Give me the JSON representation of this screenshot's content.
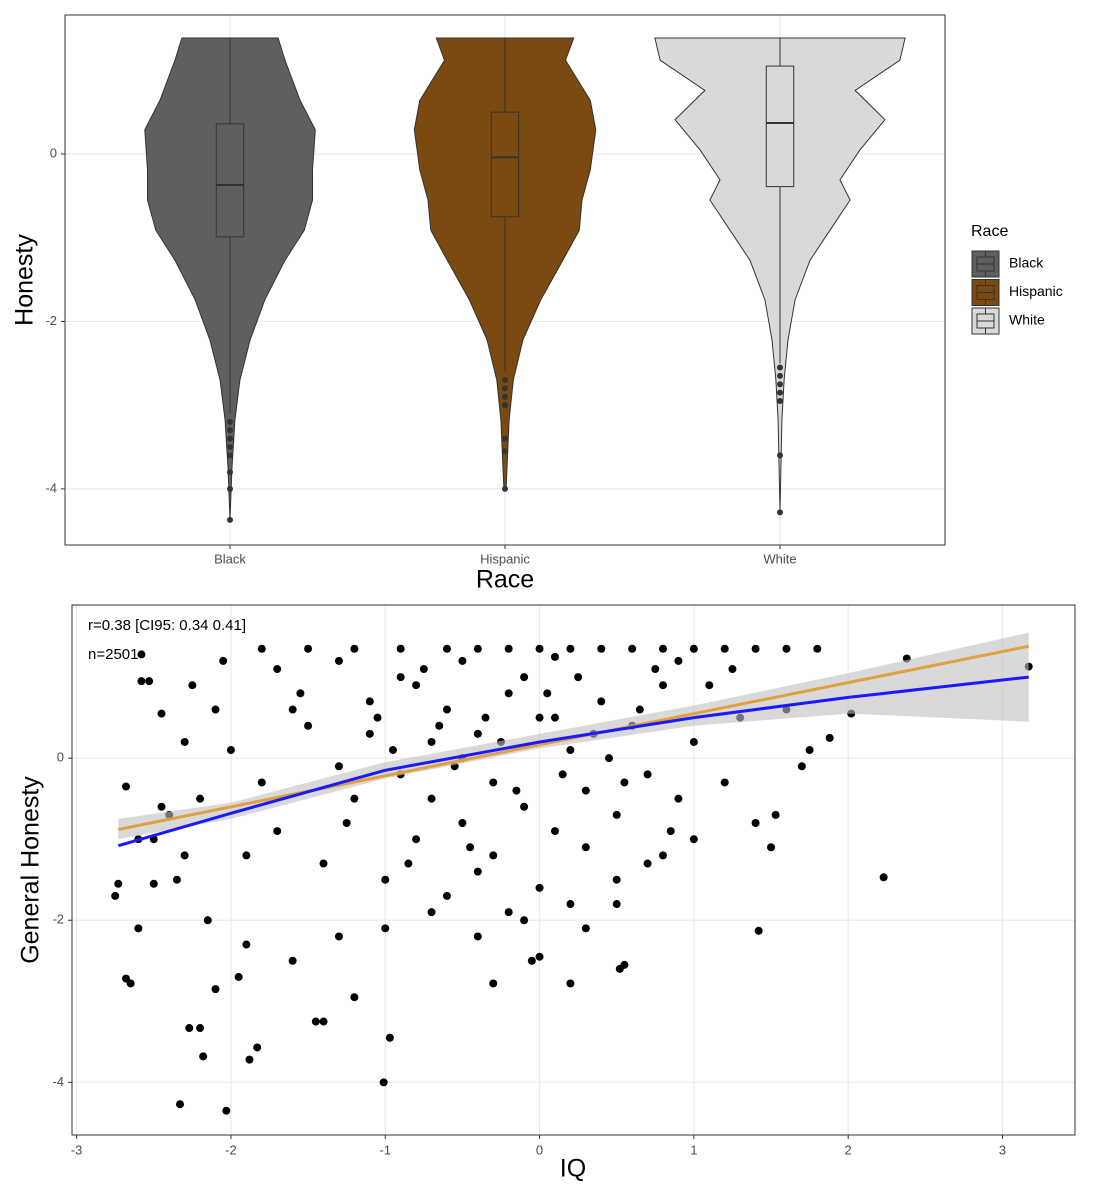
{
  "chart_data": [
    {
      "type": "violin",
      "x_label": "Race",
      "y_label": "Honesty",
      "categories": [
        "Black",
        "Hispanic",
        "White"
      ],
      "legend_title": "Race",
      "legend": "right",
      "grid": true,
      "ylim": [
        -4.67,
        1.66
      ],
      "yticks": [
        -4,
        -2,
        0
      ],
      "series": [
        {
          "name": "Black",
          "color": "#5f5f5f",
          "density_y": [
            1.385,
            1.12,
            0.64,
            0.29,
            -0.19,
            -0.55,
            -0.91,
            -1.27,
            -1.74,
            -2.22,
            -2.7,
            -3.18,
            -3.77,
            -4.37
          ],
          "density_w": [
            0.175,
            0.2,
            0.255,
            0.31,
            0.3,
            0.3,
            0.27,
            0.2,
            0.127,
            0.073,
            0.036,
            0.018,
            0.007,
            0
          ],
          "q1": -0.99,
          "median": -0.37,
          "q3": 0.36,
          "whisker_low": -3.1,
          "whisker_high": 1.385,
          "outliers": [
            -3.2,
            -3.3,
            -3.4,
            -3.5,
            -3.6,
            -3.8,
            -4.0,
            -4.37
          ]
        },
        {
          "name": "Hispanic",
          "color": "#7a4a10",
          "density_y": [
            1.385,
            1.12,
            0.64,
            0.29,
            -0.19,
            -0.55,
            -0.91,
            -1.27,
            -1.74,
            -2.22,
            -2.7,
            -3.18,
            -4.0
          ],
          "density_w": [
            0.25,
            0.22,
            0.31,
            0.33,
            0.31,
            0.28,
            0.27,
            0.21,
            0.13,
            0.065,
            0.03,
            0.015,
            0.004
          ],
          "q1": -0.75,
          "median": -0.04,
          "q3": 0.5,
          "whisker_low": -2.6,
          "whisker_high": 1.385,
          "outliers": [
            -2.7,
            -2.8,
            -2.9,
            -3.0,
            -3.4,
            -3.55,
            -4.0
          ]
        },
        {
          "name": "White",
          "color": "#d9d9d9",
          "density_y": [
            1.385,
            1.12,
            0.76,
            0.41,
            0.05,
            -0.31,
            -0.55,
            -0.91,
            -1.27,
            -1.74,
            -2.22,
            -2.7,
            -3.18,
            -4.27
          ],
          "density_w": [
            0.455,
            0.436,
            0.273,
            0.382,
            0.291,
            0.218,
            0.255,
            0.182,
            0.109,
            0.055,
            0.029,
            0.015,
            0.007,
            0
          ],
          "q1": -0.39,
          "median": 0.37,
          "q3": 1.05,
          "whisker_low": -2.5,
          "whisker_high": 1.385,
          "outliers": [
            -2.55,
            -2.65,
            -2.75,
            -2.85,
            -2.95,
            -3.6,
            -4.28
          ]
        }
      ]
    },
    {
      "type": "scatter",
      "x_label": "IQ",
      "y_label": "General Honesty",
      "annotations": [
        "r=0.38 [CI95: 0.34 0.41]",
        "n=2501"
      ],
      "grid": true,
      "xlim": [
        -3.03,
        3.47
      ],
      "xticks": [
        -3,
        -2,
        -1,
        0,
        1,
        2,
        3
      ],
      "ylim": [
        -4.65,
        1.89
      ],
      "yticks": [
        -4,
        -2,
        0
      ],
      "series": [
        {
          "color": "#000000",
          "x": [
            -2.33,
            -2.03,
            -1.01,
            -0.97,
            -2.18,
            -1.88,
            -1.83,
            -2.27,
            -2.2,
            -1.4,
            -1.45,
            -1.2,
            2.23,
            1.42,
            3.17,
            2.38,
            2.02,
            1.88,
            -2.65,
            -2.68,
            -2.6,
            -2.75,
            -2.73,
            -2.68,
            -2.58,
            -2.53,
            -2.45,
            -2.58,
            -2.1,
            -1.95,
            -0.3,
            0.2,
            0.55,
            0.52,
            -0.05,
            0.0,
            1.5,
            1.53,
            1.7,
            1.75,
            -1.8,
            -1.5,
            -1.2,
            -0.9,
            -0.6,
            -0.4,
            -0.2,
            0.0,
            0.2,
            0.4,
            0.6,
            0.8,
            1.0,
            1.2,
            1.4,
            1.6,
            1.8,
            -0.5,
            0.1,
            0.9,
            -0.8,
            -0.6,
            -0.4,
            -0.2,
            0.0,
            0.2,
            0.4,
            0.6,
            0.8,
            1.0,
            -0.9,
            -0.7,
            -0.5,
            -0.3,
            -0.1,
            0.1,
            0.3,
            0.5,
            0.7,
            0.9,
            -1.5,
            -1.3,
            -1.1,
            -0.9,
            -0.7,
            -0.5,
            -0.3,
            -0.1,
            0.1,
            0.3,
            -1.7,
            -1.6,
            -1.4,
            -1.2,
            -1.0,
            -0.8,
            -0.6,
            -0.4,
            -0.2,
            0.0,
            -2.2,
            -2.0,
            -1.9,
            -2.1,
            -2.4,
            -2.3,
            -1.8,
            -2.5,
            -2.35,
            -2.15,
            1.1,
            1.3,
            1.2,
            1.4,
            1.0,
            0.7,
            0.5,
            0.3,
            1.6,
            1.25,
            -1.3,
            -1.0,
            -0.7,
            -0.4,
            -0.1,
            0.2,
            0.5,
            0.8,
            -1.6,
            -1.9,
            -2.6,
            -2.5,
            -2.45,
            -2.3,
            -2.25,
            -2.05,
            -1.7,
            -1.55,
            -1.3,
            -1.1,
            -0.95,
            -0.75,
            -0.55,
            -0.35,
            -0.15,
            0.05,
            0.25,
            0.45,
            0.65,
            0.85,
            -1.25,
            -1.05,
            -0.85,
            -0.65,
            -0.45,
            -0.25,
            0.15,
            0.35,
            0.55,
            0.75
          ],
          "y": [
            -4.27,
            -4.35,
            -4.0,
            -3.45,
            -3.68,
            -3.72,
            -3.57,
            -3.33,
            -3.33,
            -3.25,
            -3.25,
            -2.95,
            -1.47,
            -2.13,
            1.13,
            1.23,
            0.55,
            0.25,
            -2.78,
            -2.72,
            -2.1,
            -1.7,
            -1.55,
            -0.35,
            0.95,
            0.95,
            0.55,
            1.28,
            -2.85,
            -2.7,
            -2.78,
            -2.78,
            -2.55,
            -2.6,
            -2.5,
            -2.45,
            -1.1,
            -0.7,
            -0.1,
            0.1,
            1.35,
            1.35,
            1.35,
            1.35,
            1.35,
            1.35,
            1.35,
            1.35,
            1.35,
            1.35,
            1.35,
            1.35,
            1.35,
            1.35,
            1.35,
            1.35,
            1.35,
            1.2,
            1.25,
            1.2,
            0.9,
            0.6,
            0.3,
            0.8,
            0.5,
            0.1,
            0.7,
            0.4,
            0.9,
            0.2,
            -0.2,
            -0.5,
            -0.8,
            -0.3,
            -0.6,
            -0.9,
            -0.4,
            -0.7,
            -0.2,
            -0.5,
            0.4,
            -0.1,
            0.7,
            1.0,
            0.2,
            0.0,
            -1.2,
            1.0,
            0.5,
            -1.1,
            -0.9,
            0.6,
            -1.3,
            -0.5,
            -1.5,
            -1.0,
            -1.7,
            -1.4,
            -1.9,
            -1.6,
            -0.5,
            0.1,
            -1.2,
            0.6,
            -0.7,
            0.2,
            -0.3,
            -1.0,
            -1.5,
            -2.0,
            0.9,
            0.5,
            -0.3,
            -0.8,
            -1.0,
            -1.3,
            -1.8,
            -2.1,
            0.6,
            1.1,
            -2.2,
            -2.1,
            -1.9,
            -2.2,
            -2.0,
            -1.8,
            -1.5,
            -1.2,
            -2.5,
            -2.3,
            -1.0,
            -1.55,
            -0.6,
            -1.2,
            0.9,
            1.2,
            1.1,
            0.8,
            1.2,
            0.3,
            0.1,
            1.1,
            -0.1,
            0.5,
            -0.4,
            0.8,
            1.0,
            0.0,
            0.6,
            -0.9,
            -0.8,
            0.5,
            -1.3,
            0.4,
            -1.1,
            0.2,
            -0.2,
            0.3,
            -0.3,
            1.1
          ]
        }
      ],
      "ribbon": {
        "color": "#bfbfbf",
        "x": [
          -2.73,
          -2,
          -1,
          0,
          1,
          2,
          3.17
        ],
        "lower": [
          -1.0,
          -0.75,
          -0.25,
          0.12,
          0.4,
          0.55,
          0.45
        ],
        "upper": [
          -0.75,
          -0.55,
          -0.05,
          0.3,
          0.65,
          1.05,
          1.55
        ]
      },
      "lines": [
        {
          "color": "#e0a040",
          "x": [
            -2.73,
            3.17
          ],
          "y": [
            -0.88,
            1.38
          ]
        },
        {
          "color": "#1a1aff",
          "x": [
            -2.73,
            -2,
            -1,
            0,
            1,
            2,
            3.17
          ],
          "y": [
            -1.08,
            -0.68,
            -0.15,
            0.2,
            0.5,
            0.75,
            1.0
          ]
        }
      ]
    }
  ]
}
